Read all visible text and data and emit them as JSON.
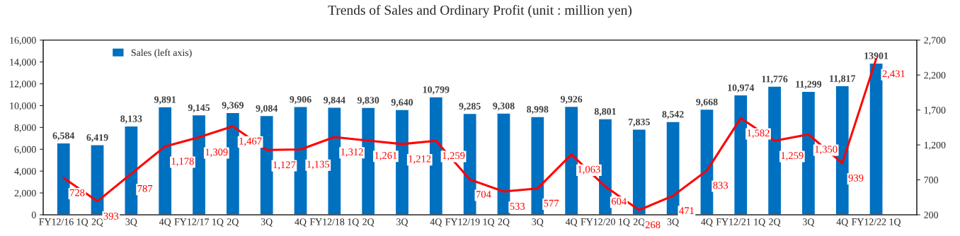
{
  "chart_data": {
    "type": "bar",
    "title": "Trends of Sales and Ordinary Profit (unit : million yen)",
    "categories": [
      "FY12/16 1Q",
      "2Q",
      "3Q",
      "4Q",
      "FY12/17 1Q",
      "2Q",
      "3Q",
      "4Q",
      "FY12/18 1Q",
      "2Q",
      "3Q",
      "4Q",
      "FY12/19 1Q",
      "2Q",
      "3Q",
      "4Q",
      "FY12/20 1Q",
      "2Q",
      "3Q",
      "4Q",
      "FY12/21 1Q",
      "2Q",
      "3Q",
      "4Q",
      "FY12/22 1Q"
    ],
    "series": [
      {
        "name": "Sales (left axis)",
        "color": "#0070c0",
        "values": [
          6584,
          6419,
          8133,
          9891,
          9145,
          9369,
          9084,
          9906,
          9844,
          9830,
          9640,
          10799,
          9285,
          9308,
          8998,
          9926,
          8801,
          7835,
          8542,
          9668,
          10974,
          11776,
          11299,
          11817,
          13901
        ],
        "value_labels": [
          "6,584",
          "6,419",
          "8,133",
          "9,891",
          "9,145",
          "9,369",
          "9,084",
          "9,906",
          "9,844",
          "9,830",
          "9,640",
          "10,799",
          "9,285",
          "9,308",
          "8,998",
          "9,926",
          "8,801",
          "7,835",
          "8,542",
          "9,668",
          "10,974",
          "11,776",
          "11,299",
          "11,817",
          "13901"
        ]
      },
      {
        "type": "line",
        "axis": "y2",
        "color": "#ff0000",
        "values": [
          728,
          393,
          787,
          1178,
          1309,
          1467,
          1127,
          1135,
          1312,
          1261,
          1212,
          1259,
          704,
          533,
          577,
          1063,
          604,
          268,
          471,
          833,
          1582,
          1259,
          1350,
          939,
          2431
        ],
        "value_labels": [
          "728",
          "393",
          "787",
          "1,178",
          "1,309",
          "1,467",
          "1,127",
          "1,135",
          "1,312",
          "1,261",
          "1,212",
          "1,259",
          "704",
          "533",
          "577",
          "1,063",
          "604",
          "268",
          "471",
          "833",
          "1,582",
          "1,259",
          "1,350",
          "939",
          "2,431"
        ]
      }
    ],
    "ylim": [
      0,
      16000
    ],
    "yticks": [
      0,
      {
        "value": 2000,
        "label": "2,000"
      },
      {
        "value": 4000,
        "label": "4,000"
      },
      {
        "value": 6000,
        "label": "6,000"
      },
      {
        "value": 8000,
        "label": "8,000"
      },
      {
        "value": 10000,
        "label": "10,000"
      },
      {
        "value": 12000,
        "label": "12,000"
      },
      {
        "value": 14000,
        "label": "14,000"
      },
      {
        "value": 16000,
        "label": "16,000"
      }
    ],
    "y2lim": [
      200,
      2700
    ],
    "y2ticks": [
      200,
      700,
      {
        "value": 1200,
        "label": "1,200"
      },
      {
        "value": 1700,
        "label": "1,700"
      },
      {
        "value": 2200,
        "label": "2,200"
      },
      {
        "value": 2700,
        "label": "2,700"
      }
    ],
    "legend": "top left",
    "grid": false
  }
}
